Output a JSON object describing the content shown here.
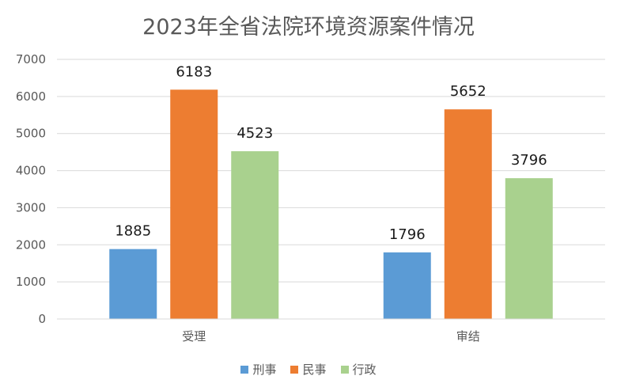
{
  "chart_data": {
    "type": "bar",
    "title": "2023年全省法院环境资源案件情况",
    "categories": [
      "受理",
      "审结"
    ],
    "series": [
      {
        "name": "刑事",
        "values": [
          1885,
          1796
        ],
        "color": "#5B9BD5"
      },
      {
        "name": "民事",
        "values": [
          6183,
          5652
        ],
        "color": "#ED7D31"
      },
      {
        "name": "行政",
        "values": [
          4523,
          3796
        ],
        "color": "#A9D18E"
      }
    ],
    "ylim": [
      0,
      7000
    ],
    "yticks": [
      "0",
      "1000",
      "2000",
      "3000",
      "4000",
      "5000",
      "6000",
      "7000"
    ],
    "ytick_values": [
      0,
      1000,
      2000,
      3000,
      4000,
      5000,
      6000,
      7000
    ],
    "grid": true,
    "gridColor": "#D9D9D9",
    "legend": "bottom",
    "data_labels": true
  }
}
